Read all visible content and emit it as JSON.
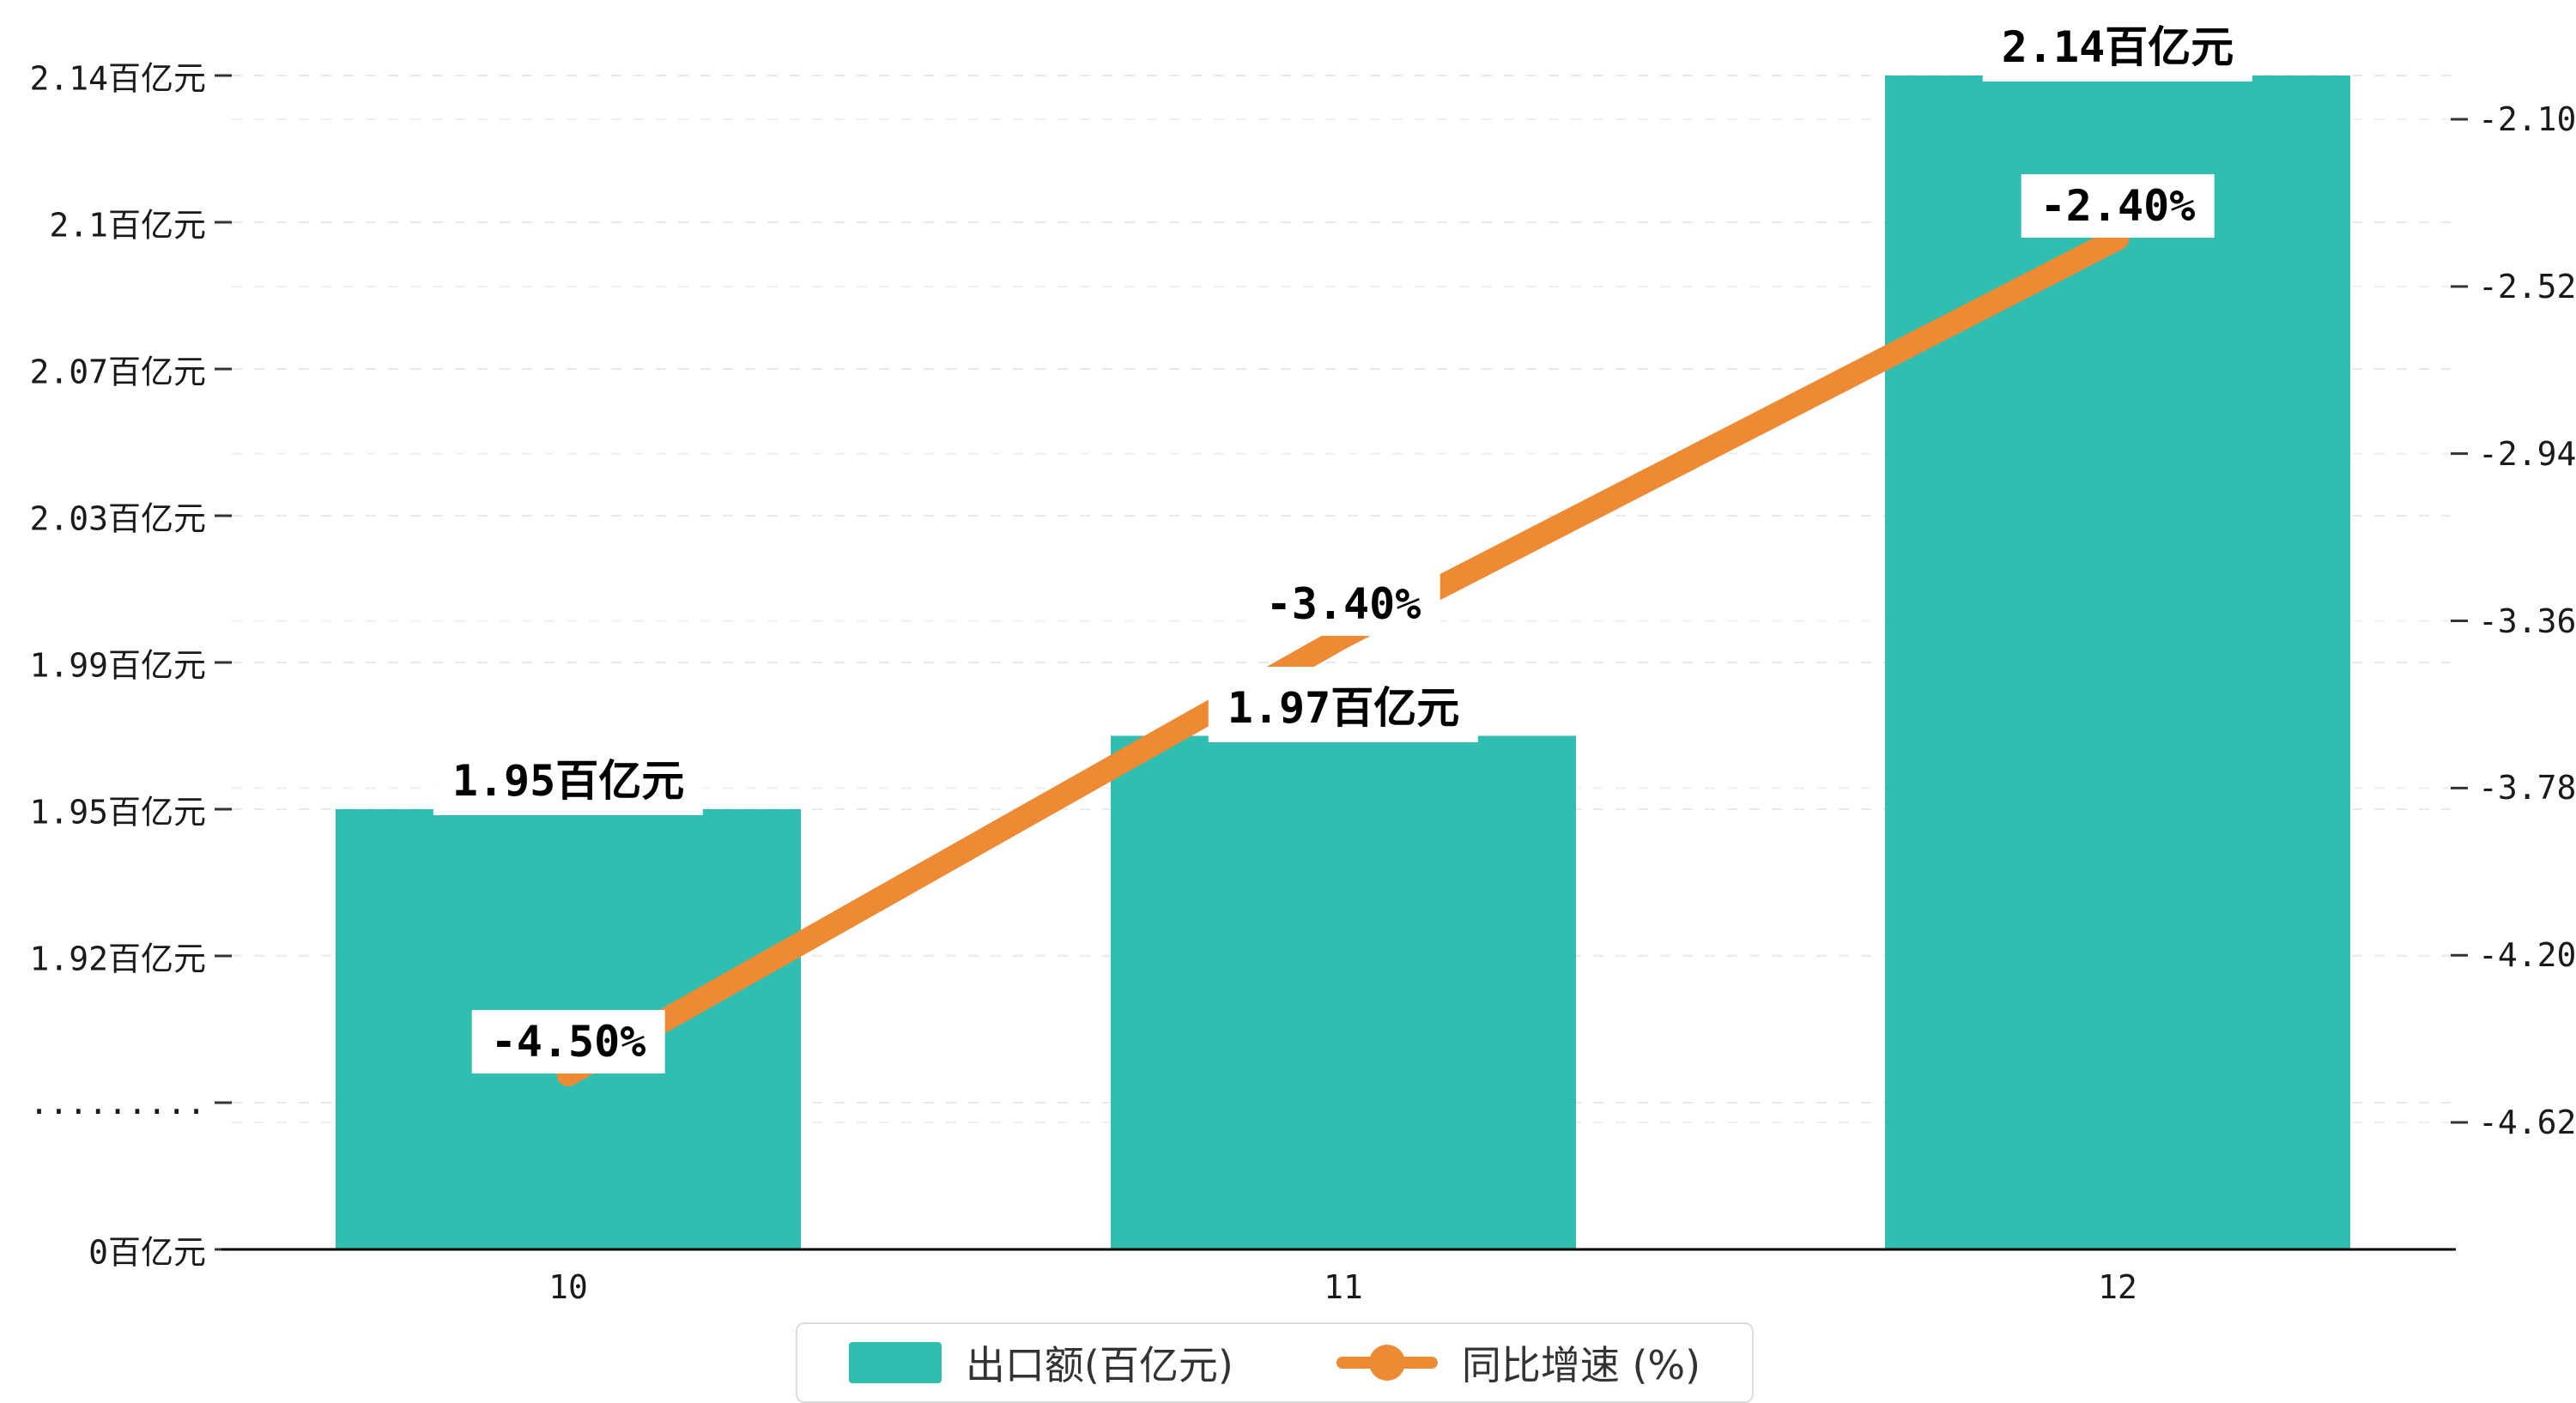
{
  "chart_data": {
    "type": "bar",
    "categories": [
      "10",
      "11",
      "12"
    ],
    "series": [
      {
        "name": "出口额(百亿元)",
        "type": "bar",
        "color": "#2FBEB0",
        "values": [
          1.95,
          1.97,
          2.14
        ],
        "labels": [
          "1.95百亿元",
          "1.97百亿元",
          "2.14百亿元"
        ]
      },
      {
        "name": "同比增速 (%)",
        "type": "line",
        "color": "#EE8A33",
        "values": [
          -4.5,
          -3.4,
          -2.4
        ],
        "labels": [
          "-4.50%",
          "-3.40%",
          "-2.40%"
        ]
      }
    ],
    "left_axis": {
      "tick_labels": [
        "0百亿元",
        ".........",
        "1.92百亿元",
        "1.95百亿元",
        "1.99百亿元",
        "2.03百亿元",
        "2.07百亿元",
        "2.1百亿元",
        "2.14百亿元"
      ]
    },
    "right_axis": {
      "tick_labels": [
        "-2.10",
        "-2.52",
        "-2.94",
        "-3.36",
        "-3.78",
        "-4.20",
        "-4.62"
      ]
    },
    "legend": {
      "items": [
        {
          "label": "出口额(百亿元)",
          "type": "bar"
        },
        {
          "label": "同比增速 (%)",
          "type": "line"
        }
      ]
    },
    "title": "",
    "grid": "dashed",
    "legend_position": "bottom-center"
  }
}
